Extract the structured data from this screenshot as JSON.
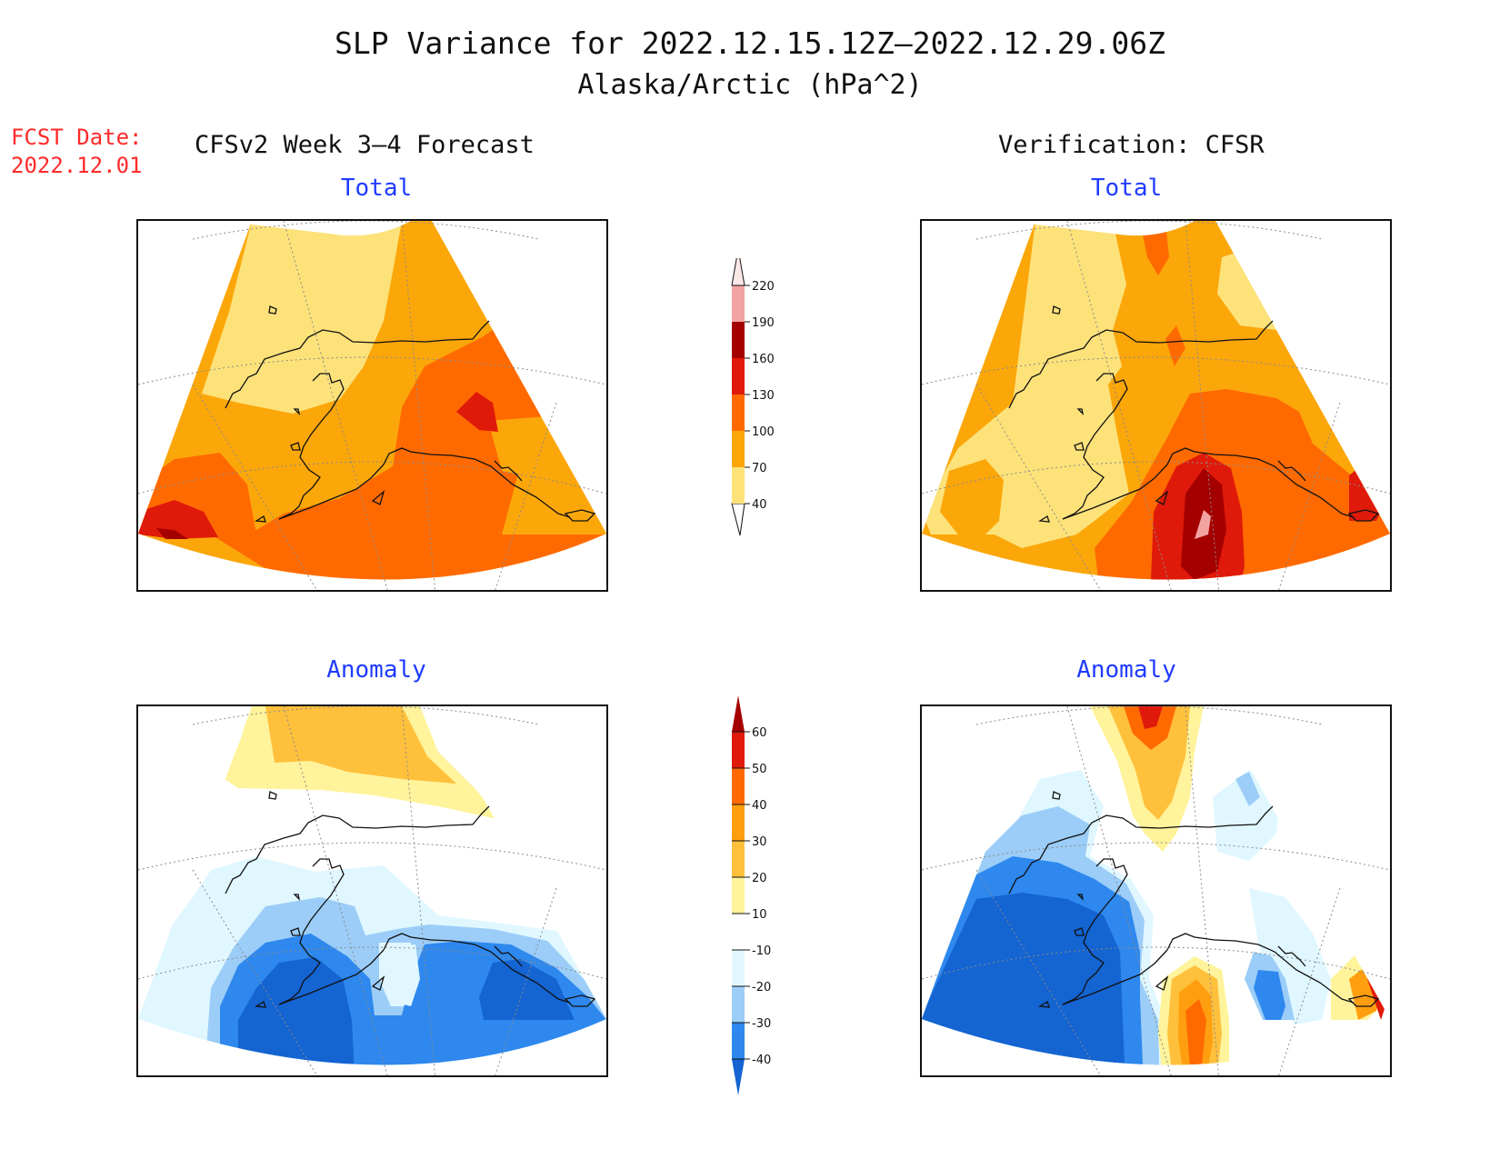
{
  "title_line1": "SLP Variance for 2022.12.15.12Z—2022.12.29.06Z",
  "title_line2": "Alaska/Arctic (hPa^2)",
  "fcst_label": "FCST Date:",
  "fcst_date": "2022.12.01",
  "left_heading": "CFSv2 Week 3—4 Forecast",
  "right_heading": "Verification: CFSR",
  "panels": {
    "fcst_total": "Total",
    "verif_total": "Total",
    "fcst_anomaly": "Anomaly",
    "verif_anomaly": "Anomaly"
  },
  "total_colorbar": {
    "levels": [
      "40",
      "70",
      "100",
      "130",
      "160",
      "190",
      "220"
    ],
    "colors": [
      "#fde27a",
      "#fba70a",
      "#ff6a00",
      "#e01a0a",
      "#a50000",
      "#f4a3a3",
      "#fde8e8"
    ]
  },
  "anomaly_colorbar": {
    "levels": [
      "-40",
      "-30",
      "-20",
      "-10",
      "10",
      "20",
      "30",
      "40",
      "50",
      "60"
    ],
    "colors": [
      "#1464d2",
      "#2e88ee",
      "#9bcdf8",
      "#e0f7ff",
      "#ffffff",
      "#fff39b",
      "#ffc03c",
      "#ff9f10",
      "#ff6a00",
      "#e01a0a",
      "#a50000"
    ]
  },
  "palette": {
    "t40": "#fde27a",
    "t70": "#fba70a",
    "t100": "#ff6a00",
    "t130": "#e01a0a",
    "t160": "#a50000",
    "t190": "#f4a3a3",
    "a_n40": "#1464d2",
    "a_n30": "#2e88ee",
    "a_n20": "#9bcdf8",
    "a_n10": "#e0f7ff",
    "a_0": "#ffffff",
    "a_10": "#fff39b",
    "a_20": "#ffc03c",
    "a_30": "#ff9f10",
    "a_40": "#ff6a00",
    "a_50": "#e01a0a"
  }
}
